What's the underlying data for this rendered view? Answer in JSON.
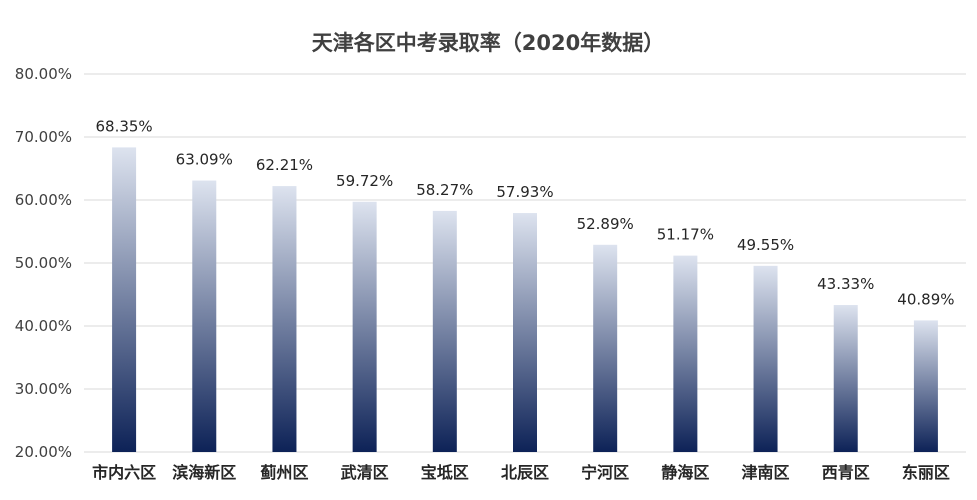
{
  "chart_data": {
    "type": "bar",
    "title": "天津各区中考录取率（2020年数据）",
    "xlabel": "",
    "ylabel": "",
    "categories": [
      "市内六区",
      "滨海新区",
      "蓟州区",
      "武清区",
      "宝坻区",
      "北辰区",
      "宁河区",
      "静海区",
      "津南区",
      "西青区",
      "东丽区"
    ],
    "values": [
      68.35,
      63.09,
      62.21,
      59.72,
      58.27,
      57.93,
      52.89,
      51.17,
      49.55,
      43.33,
      40.89
    ],
    "data_labels": [
      "68.35%",
      "63.09%",
      "62.21%",
      "59.72%",
      "58.27%",
      "57.93%",
      "52.89%",
      "51.17%",
      "49.55%",
      "43.33%",
      "40.89%"
    ],
    "ylim": [
      20,
      80
    ],
    "y_ticks": [
      20,
      30,
      40,
      50,
      60,
      70,
      80
    ],
    "y_tick_labels": [
      "20.00%",
      "30.00%",
      "40.00%",
      "50.00%",
      "60.00%",
      "70.00%",
      "80.00%"
    ],
    "grid": true,
    "legend": "none",
    "colors": {
      "bar_top": "#dde3ef",
      "bar_bottom": "#0d2257",
      "grid": "#d9d9d9",
      "text": "#404040"
    }
  }
}
